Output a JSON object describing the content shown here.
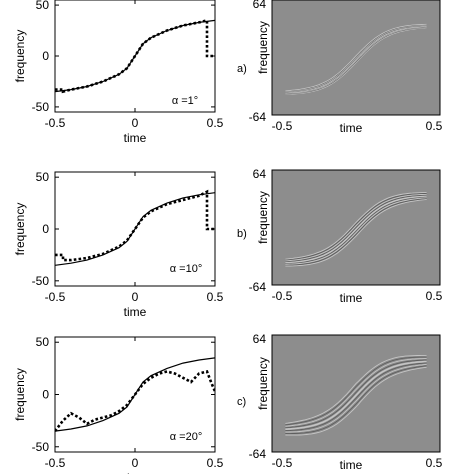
{
  "chart_data": [
    {
      "type": "line",
      "panel": "a)",
      "xlabel": "time",
      "ylabel": "frequency",
      "xlim": [
        -0.5,
        0.5
      ],
      "ylim": [
        -55,
        55
      ],
      "xticks": [
        "-0.5",
        "0",
        "0.5"
      ],
      "yticks": [
        "-50",
        "0",
        "50"
      ],
      "annotation": "α =1°",
      "series": [
        {
          "style": "solid",
          "x": [
            -0.5,
            -0.4,
            -0.3,
            -0.2,
            -0.1,
            -0.05,
            0,
            0.05,
            0.1,
            0.2,
            0.3,
            0.4,
            0.5
          ],
          "y": [
            -35,
            -33,
            -30,
            -25,
            -18,
            -12,
            0,
            12,
            18,
            25,
            30,
            33,
            35
          ]
        },
        {
          "style": "dotted",
          "x": [
            -0.5,
            -0.45,
            -0.45,
            -0.4,
            -0.3,
            -0.2,
            -0.1,
            -0.05,
            0,
            0.05,
            0.1,
            0.2,
            0.3,
            0.4,
            0.45,
            0.45,
            0.5
          ],
          "y": [
            -33,
            -33,
            -35,
            -33,
            -30,
            -25,
            -18,
            -12,
            0,
            12,
            18,
            25,
            30,
            33,
            35,
            0,
            0
          ]
        }
      ]
    },
    {
      "type": "line",
      "panel": "b)",
      "xlabel": "time",
      "ylabel": "frequency",
      "xlim": [
        -0.5,
        0.5
      ],
      "ylim": [
        -55,
        55
      ],
      "xticks": [
        "-0.5",
        "0",
        "0.5"
      ],
      "yticks": [
        "-50",
        "0",
        "50"
      ],
      "annotation": "α =10°",
      "series": [
        {
          "style": "solid",
          "x": [
            -0.5,
            -0.4,
            -0.3,
            -0.2,
            -0.1,
            -0.05,
            0,
            0.05,
            0.1,
            0.2,
            0.3,
            0.4,
            0.5
          ],
          "y": [
            -35,
            -33,
            -30,
            -25,
            -18,
            -12,
            0,
            12,
            18,
            25,
            30,
            33,
            35
          ]
        },
        {
          "style": "dotted",
          "x": [
            -0.5,
            -0.45,
            -0.45,
            -0.4,
            -0.3,
            -0.2,
            -0.1,
            -0.05,
            0,
            0.05,
            0.1,
            0.2,
            0.3,
            0.4,
            0.45,
            0.45,
            0.5
          ],
          "y": [
            -25,
            -25,
            -30,
            -30,
            -28,
            -24,
            -17,
            -11,
            0,
            11,
            17,
            24,
            28,
            32,
            36,
            0,
            0
          ]
        }
      ]
    },
    {
      "type": "line",
      "panel": "c)",
      "xlabel": "time",
      "ylabel": "frequency",
      "xlim": [
        -0.5,
        0.5
      ],
      "ylim": [
        -55,
        55
      ],
      "xticks": [
        "-0.5",
        "0",
        "0.5"
      ],
      "yticks": [
        "-50",
        "0",
        "50"
      ],
      "annotation": "α =20°",
      "series": [
        {
          "style": "solid",
          "x": [
            -0.5,
            -0.4,
            -0.3,
            -0.2,
            -0.1,
            -0.05,
            0,
            0.05,
            0.1,
            0.2,
            0.3,
            0.4,
            0.5
          ],
          "y": [
            -35,
            -33,
            -30,
            -25,
            -18,
            -12,
            0,
            12,
            18,
            25,
            30,
            33,
            35
          ]
        },
        {
          "style": "dotted",
          "x": [
            -0.5,
            -0.45,
            -0.4,
            -0.35,
            -0.3,
            -0.25,
            -0.2,
            -0.15,
            -0.1,
            -0.05,
            0,
            0.05,
            0.1,
            0.15,
            0.2,
            0.25,
            0.3,
            0.35,
            0.4,
            0.45,
            0.48,
            0.5
          ],
          "y": [
            -35,
            -25,
            -18,
            -22,
            -28,
            -24,
            -22,
            -20,
            -16,
            -10,
            0,
            10,
            16,
            20,
            22,
            20,
            16,
            12,
            20,
            22,
            10,
            3
          ]
        }
      ]
    },
    {
      "type": "heatmap",
      "panel": "a)",
      "xlabel": "time",
      "ylabel": "frequency",
      "xlim": [
        -0.5,
        0.5
      ],
      "ylim": [
        -64,
        64
      ],
      "xticks": [
        "-0.5",
        "0.5"
      ],
      "yticks": [
        "64",
        "-64"
      ],
      "spread": 0.3
    },
    {
      "type": "heatmap",
      "panel": "b)",
      "xlabel": "time",
      "ylabel": "frequency",
      "xlim": [
        -0.5,
        0.5
      ],
      "ylim": [
        -64,
        64
      ],
      "xticks": [
        "-0.5",
        "0.5"
      ],
      "yticks": [
        "64",
        "-64"
      ],
      "spread": 0.6
    },
    {
      "type": "heatmap",
      "panel": "c)",
      "xlabel": "time",
      "ylabel": "frequency",
      "xlim": [
        -0.5,
        0.5
      ],
      "ylim": [
        -64,
        64
      ],
      "xticks": [
        "-0.5",
        "0.5"
      ],
      "yticks": [
        "64",
        "-64"
      ],
      "spread": 1.0
    }
  ]
}
